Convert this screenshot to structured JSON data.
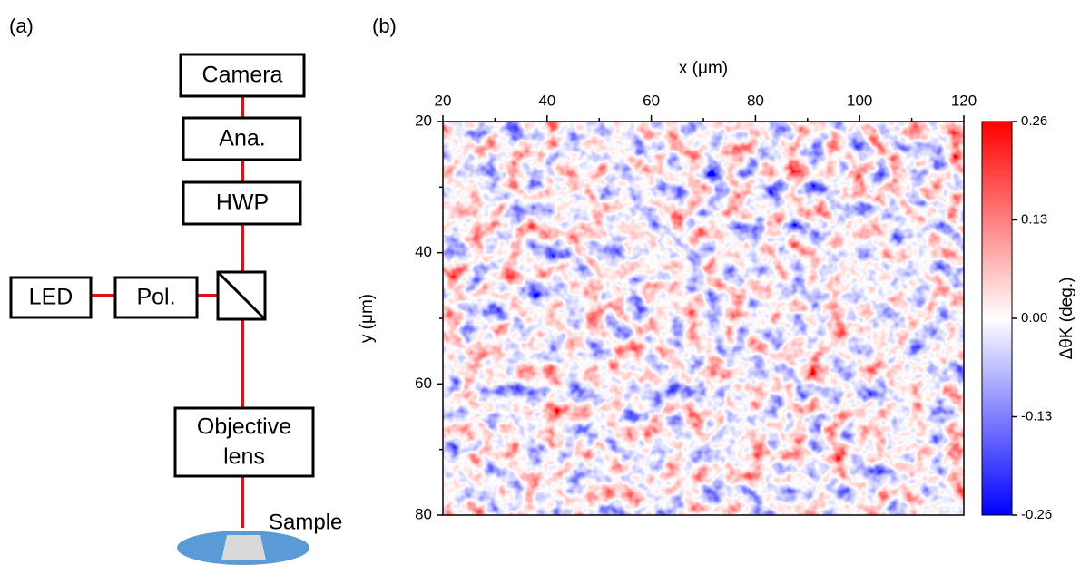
{
  "diagram": {
    "label": "(a)",
    "camera": "Camera",
    "analyzer": "Ana.",
    "hwp": "HWP",
    "led": "LED",
    "polarizer": "Pol.",
    "objective": [
      "Objective",
      "lens"
    ],
    "sample": "Sample"
  },
  "chart_data": {
    "type": "heatmap",
    "label": "(b)",
    "x_label": "x (μm)",
    "y_label": "y (μm)",
    "xlim": [
      20,
      120
    ],
    "xticks": [
      20,
      40,
      60,
      80,
      100,
      120
    ],
    "xminorticks": [
      30,
      50,
      70,
      90,
      110
    ],
    "ylim": [
      20,
      80
    ],
    "yticks": [
      20,
      40,
      60,
      80
    ],
    "yminorticks": [
      30,
      50,
      70
    ],
    "x_axis_position": "top",
    "y_inverted": true,
    "colorbar": {
      "label": "ΔθK (deg.)",
      "lim": [
        -0.26,
        0.26
      ],
      "ticks": [
        -0.26,
        -0.13,
        {
          "value": 0,
          "label": "0.00"
        },
        0.13,
        0.26
      ],
      "colors": [
        "#0000ff",
        "#ffffff",
        "#ff0000"
      ]
    }
  }
}
